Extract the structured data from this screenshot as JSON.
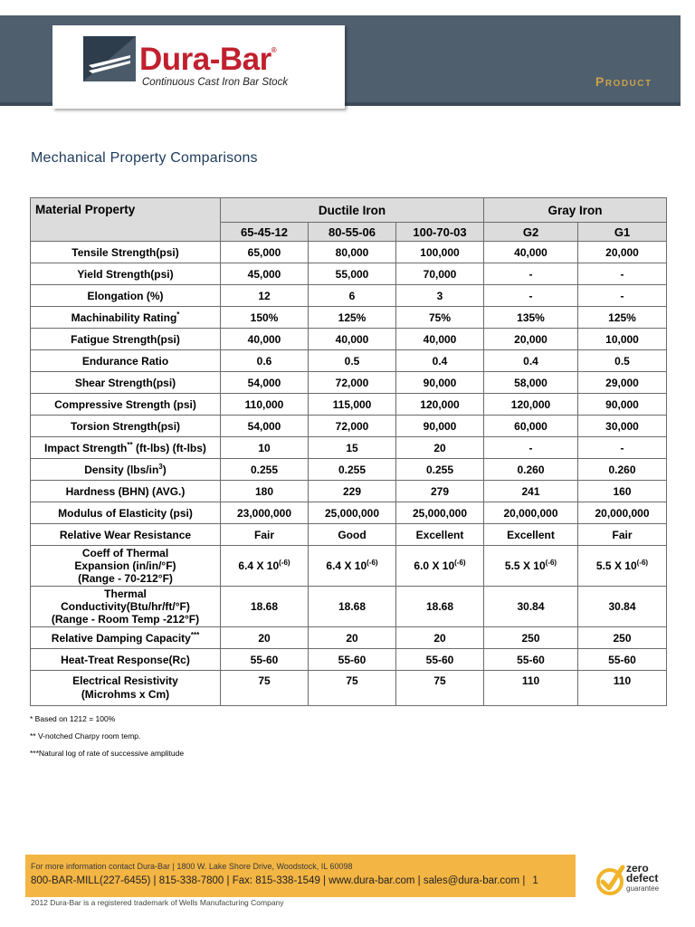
{
  "header": {
    "brand": "Dura-Bar",
    "reg": "®",
    "tagline": "Continuous Cast Iron Bar Stock",
    "section": "Product"
  },
  "title": "Mechanical Property Comparisons",
  "table": {
    "property_header": "Material Property",
    "groups": [
      "Ductile Iron",
      "Gray Iron"
    ],
    "grades": [
      "65-45-12",
      "80-55-06",
      "100-70-03",
      "G2",
      "G1"
    ],
    "rows": [
      {
        "label": "Tensile Strength(psi)",
        "values": [
          "65,000",
          "80,000",
          "100,000",
          "40,000",
          "20,000"
        ]
      },
      {
        "label": "Yield Strength(psi)",
        "values": [
          "45,000",
          "55,000",
          "70,000",
          "-",
          "-"
        ]
      },
      {
        "label": "Elongation (%)",
        "values": [
          "12",
          "6",
          "3",
          "-",
          "-"
        ]
      },
      {
        "label": "Machinability Rating",
        "sup": "*",
        "values": [
          "150%",
          "125%",
          "75%",
          "135%",
          "125%"
        ]
      },
      {
        "label": "Fatigue Strength(psi)",
        "values": [
          "40,000",
          "40,000",
          "40,000",
          "20,000",
          "10,000"
        ]
      },
      {
        "label": "Endurance Ratio",
        "values": [
          "0.6",
          "0.5",
          "0.4",
          "0.4",
          "0.5"
        ]
      },
      {
        "label": "Shear Strength(psi)",
        "values": [
          "54,000",
          "72,000",
          "90,000",
          "58,000",
          "29,000"
        ]
      },
      {
        "label": "Compressive Strength (psi)",
        "values": [
          "110,000",
          "115,000",
          "120,000",
          "120,000",
          "90,000"
        ]
      },
      {
        "label": "Torsion Strength(psi)",
        "values": [
          "54,000",
          "72,000",
          "90,000",
          "60,000",
          "30,000"
        ]
      },
      {
        "label": "Impact Strength",
        "sup": "**",
        "label_tail": " (ft-lbs) (ft-lbs)",
        "values": [
          "10",
          "15",
          "20",
          "-",
          "-"
        ]
      },
      {
        "label": "Density (lbs/in",
        "sup": "3",
        "label_tail": ")",
        "values": [
          "0.255",
          "0.255",
          "0.255",
          "0.260",
          "0.260"
        ]
      },
      {
        "label": "Hardness (BHN)  (AVG.)",
        "values": [
          "180",
          "229",
          "279",
          "241",
          "160"
        ]
      },
      {
        "label": "Modulus of Elasticity (psi)",
        "values": [
          "23,000,000",
          "25,000,000",
          "25,000,000",
          "20,000,000",
          "20,000,000"
        ]
      },
      {
        "label": "Relative Wear Resistance",
        "values": [
          "Fair",
          "Good",
          "Excellent",
          "Excellent",
          "Fair"
        ]
      },
      {
        "label_lines": [
          "Coeff of Thermal",
          "Expansion (in/in/°F)",
          "(Range - 70-212°F)"
        ],
        "values": [
          "6.4 X 10",
          "6.4 X 10",
          "6.0 X 10",
          "5.5 X 10",
          "5.5 X 10"
        ],
        "exp": "(-6)",
        "tall": true
      },
      {
        "label_lines": [
          "Thermal",
          "Conductivity(Btu/hr/ft/°F)",
          "(Range - Room Temp -212°F)"
        ],
        "values": [
          "18.68",
          "18.68",
          "18.68",
          "30.84",
          "30.84"
        ],
        "tall": true
      },
      {
        "label": "Relative Damping Capacity",
        "sup": "***",
        "values": [
          "20",
          "20",
          "20",
          "250",
          "250"
        ]
      },
      {
        "label": "Heat-Treat Response(Rc)",
        "values": [
          "55-60",
          "55-60",
          "55-60",
          "55-60",
          "55-60"
        ]
      },
      {
        "label_lines": [
          "Electrical Resistivity",
          "(Microhms x Cm)"
        ],
        "values": [
          "75",
          "75",
          "75",
          "110",
          "110"
        ],
        "elec": true
      }
    ]
  },
  "notes": [
    "* Based on 1212 = 100%",
    "** V-notched Charpy room temp.",
    "***Natural log of rate of successive amplitude"
  ],
  "footer": {
    "line1": "For more information contact Dura-Bar  |  1800 W. Lake Shore Drive, Woodstock, IL 60098",
    "line2": "800-BAR-MILL(227-6455)  |  815-338-7800  |  Fax: 815-338-1549  |  www.dura-bar.com  |  sales@dura-bar.com  |",
    "page": "1",
    "copyright": "2012 Dura-Bar is a registered trademark of Wells Manufacturing Company"
  },
  "badge": {
    "line1": "zero",
    "line2": "defect",
    "line3": "guarantee"
  }
}
